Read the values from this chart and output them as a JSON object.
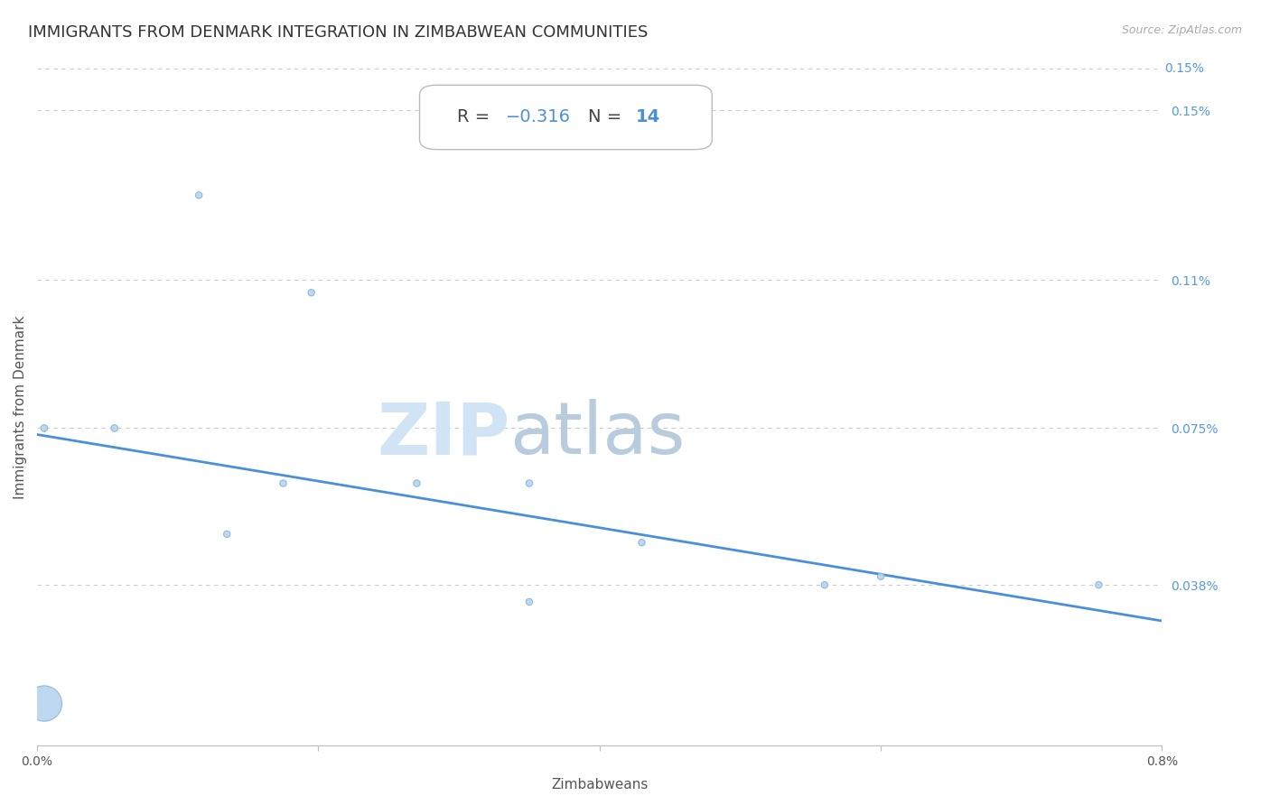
{
  "title": "IMMIGRANTS FROM DENMARK INTEGRATION IN ZIMBABWEAN COMMUNITIES",
  "source": "Source: ZipAtlas.com",
  "xlabel": "Zimbabweans",
  "ylabel": "Immigrants from Denmark",
  "R": -0.316,
  "N": 14,
  "x_min": 0.0,
  "x_max": 0.008,
  "y_min": 0.0,
  "y_max": 0.0016,
  "x_ticks": [
    0.0,
    0.002,
    0.004,
    0.006,
    0.008
  ],
  "x_tick_labels": [
    "0.0%",
    "",
    "",
    "",
    "0.8%"
  ],
  "y_tick_labels_right": [
    "0.038%",
    "0.075%",
    "0.11%",
    "0.15%"
  ],
  "y_tick_vals_right": [
    0.00038,
    0.00075,
    0.0011,
    0.0015
  ],
  "scatter_x": [
    5e-05,
    0.00115,
    0.00195,
    0.00055,
    0.00175,
    0.0027,
    0.00135,
    0.0035,
    0.0043,
    0.0056,
    0.0035,
    0.006,
    0.00755,
    5e-05
  ],
  "scatter_y": [
    0.00075,
    0.0013,
    0.00107,
    0.00075,
    0.00062,
    0.00062,
    0.0005,
    0.00062,
    0.00048,
    0.00038,
    0.00034,
    0.0004,
    0.00038,
    0.0001
  ],
  "scatter_sizes": [
    30,
    28,
    28,
    30,
    28,
    28,
    28,
    28,
    28,
    28,
    28,
    28,
    28,
    800
  ],
  "scatter_color": "#b8d4f0",
  "scatter_edge_color": "#88b4d8",
  "line_color": "#4a90d9",
  "line_start_x": 0.0,
  "line_start_y": 0.000735,
  "line_end_x": 0.008,
  "line_end_y": 0.000295,
  "watermark_zip_color": "#d0e4f5",
  "watermark_atlas_color": "#b8ccdd",
  "title_color": "#333333",
  "axis_label_color": "#555555",
  "right_label_color": "#5599dd",
  "grid_color": "#cccccc",
  "font_size_title": 13,
  "font_size_axis": 11,
  "font_size_ticks": 10,
  "font_size_annotation": 14
}
